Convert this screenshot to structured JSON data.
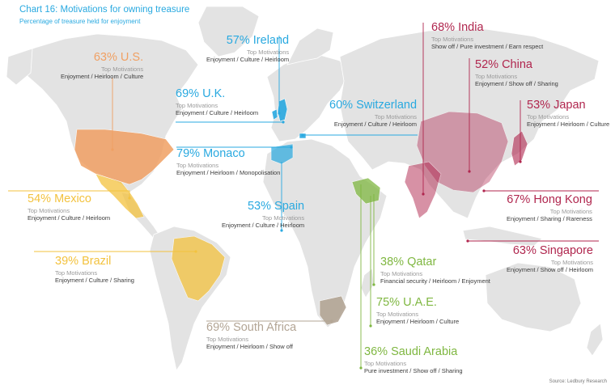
{
  "chart_data": {
    "type": "map",
    "title": "Chart 16: Motivations for owning treasure",
    "subtitle": "Percentage of treasure held for enjoyment",
    "source": "Source: Ledbury Research",
    "motivations_label": "Top Motivations",
    "countries": [
      {
        "name": "U.S.",
        "pct": "63%",
        "motivations": "Enjoyment / Heirloom / Culture",
        "color": "#f0a063"
      },
      {
        "name": "Mexico",
        "pct": "54%",
        "motivations": "Enjoyment / Culture / Heirloom",
        "color": "#f3c23e"
      },
      {
        "name": "Brazil",
        "pct": "39%",
        "motivations": "Enjoyment / Culture / Sharing",
        "color": "#f3c23e"
      },
      {
        "name": "Ireland",
        "pct": "57%",
        "motivations": "Enjoyment / Culture / Heirloom",
        "color": "#29a9e0"
      },
      {
        "name": "U.K.",
        "pct": "69%",
        "motivations": "Enjoyment / Culture / Heirloom",
        "color": "#29a9e0"
      },
      {
        "name": "Switzerland",
        "pct": "60%",
        "motivations": "Enjoyment / Culture / Heirloom",
        "color": "#29a9e0"
      },
      {
        "name": "Monaco",
        "pct": "79%",
        "motivations": "Enjoyment / Heirloom / Monopolisation",
        "color": "#29a9e0"
      },
      {
        "name": "Spain",
        "pct": "53%",
        "motivations": "Enjoyment / Culture / Heirloom",
        "color": "#29a9e0"
      },
      {
        "name": "South Africa",
        "pct": "69%",
        "motivations": "Enjoyment / Heirloom / Show off",
        "color": "#b3a595"
      },
      {
        "name": "Qatar",
        "pct": "38%",
        "motivations": "Financial security / Heirloom  / Enjoyment",
        "color": "#7fb741"
      },
      {
        "name": "U.A.E.",
        "pct": "75%",
        "motivations": "Enjoyment / Heirloom / Culture",
        "color": "#7fb741"
      },
      {
        "name": "Saudi Arabia",
        "pct": "36%",
        "motivations": "Pure investment / Show off / Sharing",
        "color": "#7fb741"
      },
      {
        "name": "India",
        "pct": "68%",
        "motivations": "Show off / Pure investment / Earn respect",
        "color": "#b0264e"
      },
      {
        "name": "China",
        "pct": "52%",
        "motivations": "Enjoyment / Show off / Sharing",
        "color": "#b0264e"
      },
      {
        "name": "Japan",
        "pct": "53%",
        "motivations": "Enjoyment / Heirloom / Culture",
        "color": "#b0264e"
      },
      {
        "name": "Hong Kong",
        "pct": "67%",
        "motivations": "Enjoyment / Sharing / Rareness",
        "color": "#b0264e"
      },
      {
        "name": "Singapore",
        "pct": "63%",
        "motivations": "Enjoyment / Show off / Heirloom",
        "color": "#b0264e"
      }
    ]
  }
}
